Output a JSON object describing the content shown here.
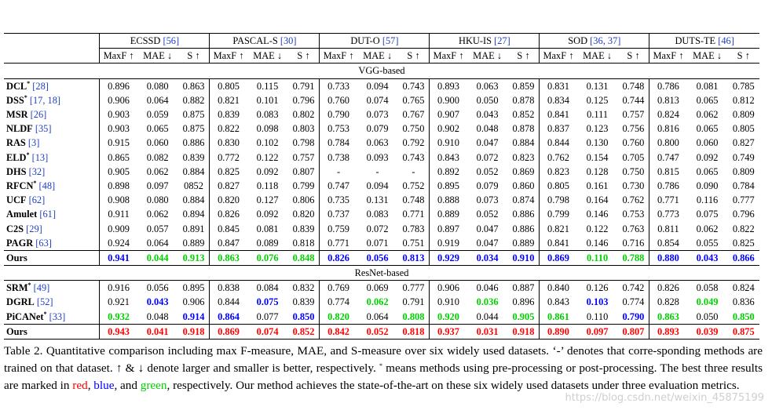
{
  "table": {
    "datasets": [
      {
        "name": "ECSSD",
        "refs": "[56]"
      },
      {
        "name": "PASCAL-S",
        "refs": "[30]"
      },
      {
        "name": "DUT-O",
        "refs": "[57]"
      },
      {
        "name": "HKU-IS",
        "refs": "[27]"
      },
      {
        "name": "SOD",
        "refs": "[36, 37]"
      },
      {
        "name": "DUTS-TE",
        "refs": "[46]"
      }
    ],
    "metrics": [
      "MaxF ↑",
      "MAE ↓",
      "S ↑"
    ],
    "sections": [
      {
        "title": "VGG-based",
        "rows": [
          {
            "method": "DCL",
            "star": "*",
            "refs": "[28]",
            "vals": [
              "0.896",
              "0.080",
              "0.863",
              "0.805",
              "0.115",
              "0.791",
              "0.733",
              "0.094",
              "0.743",
              "0.893",
              "0.063",
              "0.859",
              "0.831",
              "0.131",
              "0.748",
              "0.786",
              "0.081",
              "0.785"
            ]
          },
          {
            "method": "DSS",
            "star": "*",
            "refs": "[17, 18]",
            "vals": [
              "0.906",
              "0.064",
              "0.882",
              "0.821",
              "0.101",
              "0.796",
              "0.760",
              "0.074",
              "0.765",
              "0.900",
              "0.050",
              "0.878",
              "0.834",
              "0.125",
              "0.744",
              "0.813",
              "0.065",
              "0.812"
            ]
          },
          {
            "method": "MSR",
            "star": "",
            "refs": "[26]",
            "vals": [
              "0.903",
              "0.059",
              "0.875",
              "0.839",
              "0.083",
              "0.802",
              "0.790",
              "0.073",
              "0.767",
              "0.907",
              "0.043",
              "0.852",
              "0.841",
              "0.111",
              "0.757",
              "0.824",
              "0.062",
              "0.809"
            ]
          },
          {
            "method": "NLDF",
            "star": "",
            "refs": "[35]",
            "vals": [
              "0.903",
              "0.065",
              "0.875",
              "0.822",
              "0.098",
              "0.803",
              "0.753",
              "0.079",
              "0.750",
              "0.902",
              "0.048",
              "0.878",
              "0.837",
              "0.123",
              "0.756",
              "0.816",
              "0.065",
              "0.805"
            ]
          },
          {
            "method": "RAS",
            "star": "",
            "refs": "[3]",
            "vals": [
              "0.915",
              "0.060",
              "0.886",
              "0.830",
              "0.102",
              "0.798",
              "0.784",
              "0.063",
              "0.792",
              "0.910",
              "0.047",
              "0.884",
              "0.844",
              "0.130",
              "0.760",
              "0.800",
              "0.060",
              "0.827"
            ]
          },
          {
            "method": "ELD",
            "star": "*",
            "refs": "[13]",
            "vals": [
              "0.865",
              "0.082",
              "0.839",
              "0.772",
              "0.122",
              "0.757",
              "0.738",
              "0.093",
              "0.743",
              "0.843",
              "0.072",
              "0.823",
              "0.762",
              "0.154",
              "0.705",
              "0.747",
              "0.092",
              "0.749"
            ]
          },
          {
            "method": "DHS",
            "star": "",
            "refs": "[32]",
            "vals": [
              "0.905",
              "0.062",
              "0.884",
              "0.825",
              "0.092",
              "0.807",
              "-",
              "-",
              "-",
              "0.892",
              "0.052",
              "0.869",
              "0.823",
              "0.128",
              "0.750",
              "0.815",
              "0.065",
              "0.809"
            ]
          },
          {
            "method": "RFCN",
            "star": "*",
            "refs": "[48]",
            "vals": [
              "0.898",
              "0.097",
              "0852",
              "0.827",
              "0.118",
              "0.799",
              "0.747",
              "0.094",
              "0.752",
              "0.895",
              "0.079",
              "0.860",
              "0.805",
              "0.161",
              "0.730",
              "0.786",
              "0.090",
              "0.784"
            ]
          },
          {
            "method": "UCF",
            "star": "",
            "refs": "[62]",
            "vals": [
              "0.908",
              "0.080",
              "0.884",
              "0.820",
              "0.127",
              "0.806",
              "0.735",
              "0.131",
              "0.748",
              "0.888",
              "0.073",
              "0.874",
              "0.798",
              "0.164",
              "0.762",
              "0.771",
              "0.116",
              "0.777"
            ]
          },
          {
            "method": "Amulet",
            "star": "",
            "refs": "[61]",
            "vals": [
              "0.911",
              "0.062",
              "0.894",
              "0.826",
              "0.092",
              "0.820",
              "0.737",
              "0.083",
              "0.771",
              "0.889",
              "0.052",
              "0.886",
              "0.799",
              "0.146",
              "0.753",
              "0.773",
              "0.075",
              "0.796"
            ]
          },
          {
            "method": "C2S",
            "star": "",
            "refs": "[29]",
            "vals": [
              "0.909",
              "0.057",
              "0.891",
              "0.845",
              "0.081",
              "0.839",
              "0.759",
              "0.072",
              "0.783",
              "0.897",
              "0.047",
              "0.886",
              "0.821",
              "0.122",
              "0.763",
              "0.811",
              "0.062",
              "0.822"
            ]
          },
          {
            "method": "PAGR",
            "star": "",
            "refs": "[63]",
            "vals": [
              "0.924",
              "0.064",
              "0.889",
              "0.847",
              "0.089",
              "0.818",
              "0.771",
              "0.071",
              "0.751",
              "0.919",
              "0.047",
              "0.889",
              "0.841",
              "0.146",
              "0.716",
              "0.854",
              "0.055",
              "0.825"
            ]
          }
        ],
        "ours": {
          "method": "Ours",
          "vals": [
            "0.941",
            "0.044",
            "0.913",
            "0.863",
            "0.076",
            "0.848",
            "0.826",
            "0.056",
            "0.813",
            "0.929",
            "0.034",
            "0.910",
            "0.869",
            "0.110",
            "0.788",
            "0.880",
            "0.043",
            "0.866"
          ],
          "colors": [
            "b",
            "g",
            "g",
            "g",
            "g",
            "g",
            "b",
            "b",
            "b",
            "b",
            "b",
            "b",
            "b",
            "g",
            "g",
            "b",
            "b",
            "b"
          ]
        }
      },
      {
        "title": "ResNet-based",
        "rows": [
          {
            "method": "SRM",
            "star": "*",
            "refs": "[49]",
            "vals": [
              "0.916",
              "0.056",
              "0.895",
              "0.838",
              "0.084",
              "0.832",
              "0.769",
              "0.069",
              "0.777",
              "0.906",
              "0.046",
              "0.887",
              "0.840",
              "0.126",
              "0.742",
              "0.826",
              "0.058",
              "0.824"
            ],
            "colors": [
              "",
              "",
              "",
              "",
              "",
              "",
              "",
              "",
              "",
              "",
              "",
              "",
              "",
              "",
              "",
              "",
              "",
              ""
            ]
          },
          {
            "method": "DGRL",
            "star": "",
            "refs": "[52]",
            "vals": [
              "0.921",
              "0.043",
              "0.906",
              "0.844",
              "0.075",
              "0.839",
              "0.774",
              "0.062",
              "0.791",
              "0.910",
              "0.036",
              "0.896",
              "0.843",
              "0.103",
              "0.774",
              "0.828",
              "0.049",
              "0.836"
            ],
            "colors": [
              "",
              "b",
              "",
              "",
              "b",
              "",
              "",
              "g",
              "",
              "",
              "g",
              "",
              "",
              "b",
              "",
              "",
              "g",
              ""
            ]
          },
          {
            "method": "PiCANet",
            "star": "*",
            "refs": "[33]",
            "vals": [
              "0.932",
              "0.048",
              "0.914",
              "0.864",
              "0.077",
              "0.850",
              "0.820",
              "0.064",
              "0.808",
              "0.920",
              "0.044",
              "0.905",
              "0.861",
              "0.110",
              "0.790",
              "0.863",
              "0.050",
              "0.850"
            ],
            "colors": [
              "g",
              "",
              "b",
              "b",
              "",
              "b",
              "g",
              "",
              "g",
              "g",
              "",
              "g",
              "g",
              "",
              "b",
              "g",
              "",
              "g"
            ]
          }
        ],
        "ours": {
          "method": "Ours",
          "vals": [
            "0.943",
            "0.041",
            "0.918",
            "0.869",
            "0.074",
            "0.852",
            "0.842",
            "0.052",
            "0.818",
            "0.937",
            "0.031",
            "0.918",
            "0.890",
            "0.097",
            "0.807",
            "0.893",
            "0.039",
            "0.875"
          ],
          "colors": [
            "r",
            "r",
            "r",
            "r",
            "r",
            "r",
            "r",
            "r",
            "r",
            "r",
            "r",
            "r",
            "r",
            "r",
            "r",
            "r",
            "r",
            "r"
          ]
        }
      }
    ]
  },
  "caption": {
    "part1": "Table 2. Quantitative comparison including max F-measure, MAE, and S-measure over six widely used datasets. ‘-’ denotes that corre-sponding methods are trained on that dataset. ↑ & ↓ denote larger and smaller is better, respectively. ",
    "star": "*",
    "part2": " means methods using pre-processing or post-processing.  The best three results are marked in ",
    "red": "red",
    "sep1": ", ",
    "blue": "blue",
    "sep2": ", and ",
    "green": "green",
    "part3": ", respectively.  Our method achieves the state-of-the-art on these six widely used datasets under three evaluation metrics."
  },
  "watermark": "https://blog.csdn.net/weixin_45875199"
}
